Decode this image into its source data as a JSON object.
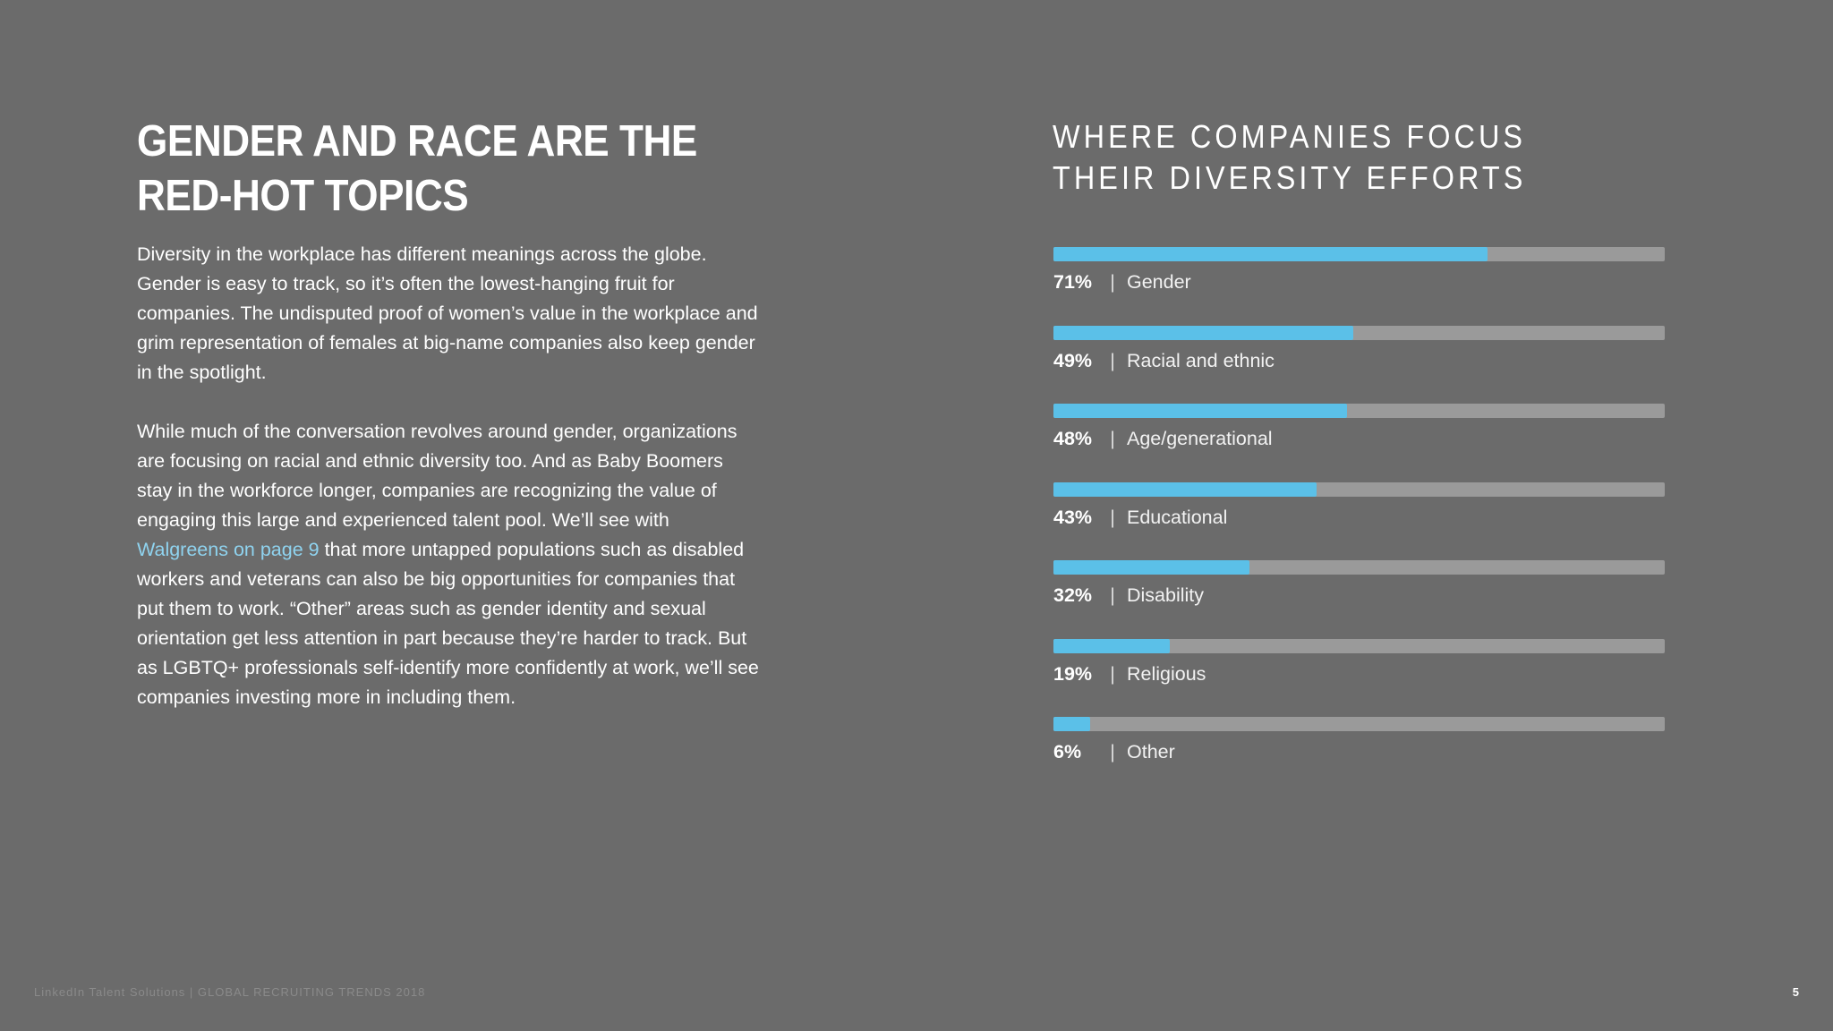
{
  "headline": {
    "line1": "GENDER AND RACE ARE THE",
    "line2": "RED-HOT TOPICS"
  },
  "body": {
    "paragraph1": "Diversity in the workplace has different meanings across the globe. Gender is easy to track, so it’s often the lowest-hanging fruit for companies. The undisputed proof of women’s value in the workplace and grim representation of females at big-name companies also keep gender in the spotlight.",
    "paragraph2_before_link": "While much of the conversation revolves around gender, organizations are focusing on  racial and ethnic diversity too. And as Baby Boomers stay in the workforce longer, companies are recognizing the value of engaging this large and experienced talent pool. We’ll see with ",
    "paragraph2_link": "Walgreens on page 9",
    "paragraph2_after_link": " that more untapped populations such as disabled workers and veterans can also be big opportunities for companies that put them to work. “Other” areas such as gender identity and sexual orientation get less attention in part because they’re harder to track. But as LGBTQ+ professionals self-identify more confidently at work, we’ll see companies investing more in including them.",
    "link_color": "#8fd3ef"
  },
  "chart_data": {
    "type": "bar",
    "orientation": "horizontal",
    "title_line1": "WHERE COMPANIES FOCUS",
    "title_line2": "THEIR DIVERSITY EFFORTS",
    "categories": [
      "Gender",
      "Racial and ethnic",
      "Age/generational",
      "Educational",
      "Disability",
      "Religious",
      "Other"
    ],
    "values": [
      71,
      49,
      48,
      43,
      32,
      19,
      6
    ],
    "value_labels": [
      "71%",
      "49%",
      "48%",
      "43%",
      "32%",
      "19%",
      "6%"
    ],
    "separator": "|",
    "xlim": [
      0,
      100
    ],
    "unit": "%",
    "grid": false,
    "bar_color": "#5bc0e8",
    "track_color": "#9a9a9a"
  },
  "footer": {
    "text": "LinkedIn Talent Solutions | GLOBAL RECRUITING TRENDS 2018",
    "page_number": "5"
  },
  "colors": {
    "background": "#6b6b6b",
    "text": "#ffffff",
    "accent": "#5bc0e8"
  }
}
